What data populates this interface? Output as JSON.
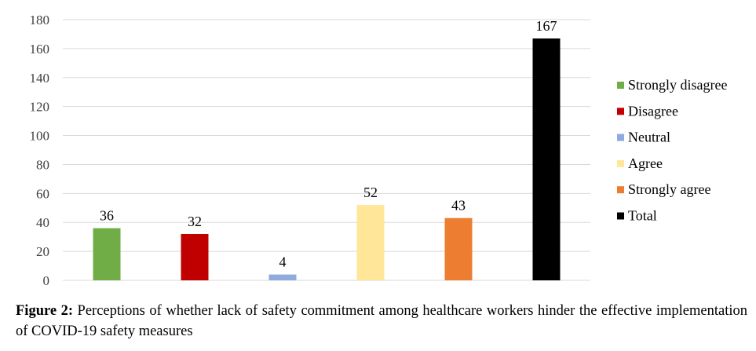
{
  "chart_data": {
    "type": "bar",
    "categories": [
      "Strongly disagree",
      "Disagree",
      "Neutral",
      "Agree",
      "Strongly agree",
      "Total"
    ],
    "values": [
      36,
      32,
      4,
      52,
      43,
      167
    ],
    "colors": [
      "#70ad47",
      "#c00000",
      "#8faadc",
      "#ffe699",
      "#ed7d31",
      "#000000"
    ],
    "ylim": [
      0,
      180
    ],
    "yticks": [
      0,
      20,
      40,
      60,
      80,
      100,
      120,
      140,
      160,
      180
    ],
    "grid": true,
    "legend_position": "right",
    "xlabel": "",
    "ylabel": "",
    "title": ""
  },
  "caption": {
    "label": "Figure 2:",
    "text": " Perceptions of whether lack of safety commitment among healthcare workers hinder the effective implementation of COVID-19 safety measures"
  }
}
